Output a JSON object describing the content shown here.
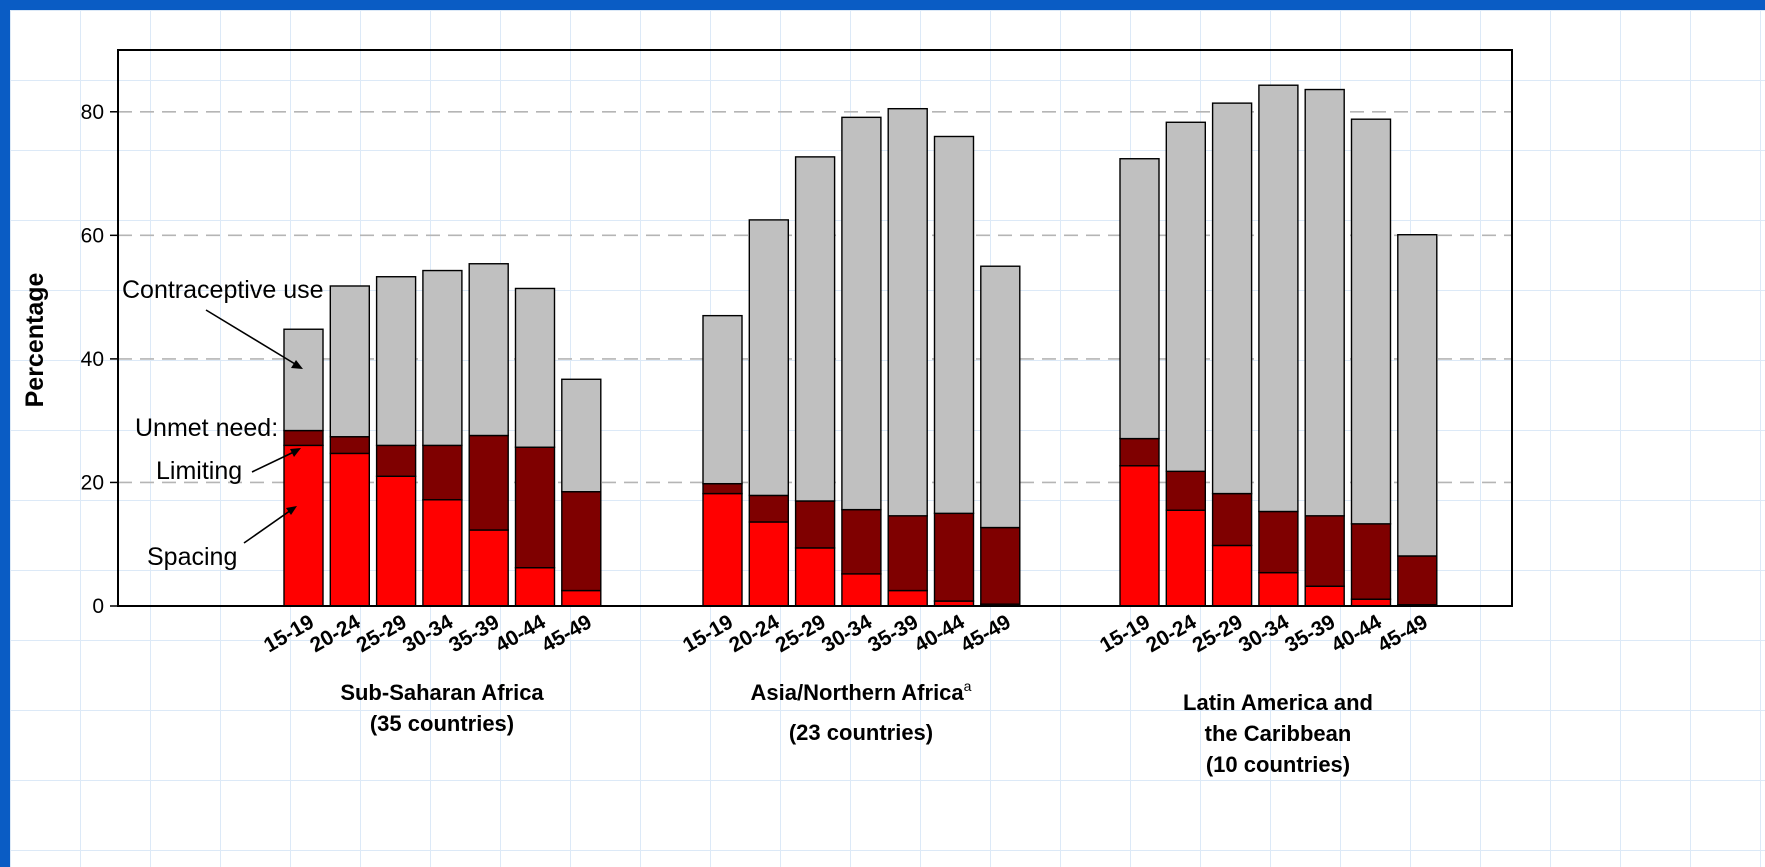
{
  "chart_data": {
    "type": "bar",
    "stacked": true,
    "ylabel": "Percentage",
    "ylim": [
      0,
      90
    ],
    "yticks": [
      "0",
      "20",
      "40",
      "60",
      "80"
    ],
    "grid": "horizontal-dashed",
    "age_groups": [
      "15-19",
      "20-24",
      "25-29",
      "30-34",
      "35-39",
      "40-44",
      "45-49"
    ],
    "series_colors": {
      "spacing": "#ff0000",
      "limiting": "#7f0000",
      "contraceptive_use": "#c0c0c0"
    },
    "annotations": {
      "contraceptive_use": "Contraceptive use",
      "unmet_need": "Unmet need:",
      "limiting": "Limiting",
      "spacing": "Spacing"
    },
    "groups": [
      {
        "label_lines": [
          "Sub-Saharan Africa",
          "(35 countries)"
        ],
        "superscript": "",
        "spacing": [
          26,
          24.7,
          21,
          17.2,
          12.3,
          6.2,
          2.5
        ],
        "limiting": [
          2.4,
          2.7,
          5,
          8.8,
          15.3,
          19.5,
          16
        ],
        "contraceptive_use": [
          16.4,
          24.4,
          27.3,
          28.3,
          27.8,
          25.7,
          18.2
        ]
      },
      {
        "label_lines": [
          "Asia/Northern Africa",
          "(23 countries)"
        ],
        "superscript": "a",
        "spacing": [
          18.2,
          13.6,
          9.4,
          5.2,
          2.5,
          0.8,
          0.3
        ],
        "limiting": [
          1.6,
          4.3,
          7.6,
          10.4,
          12.1,
          14.2,
          12.4
        ],
        "contraceptive_use": [
          27.2,
          44.6,
          55.7,
          63.5,
          65.9,
          61,
          42.3
        ]
      },
      {
        "label_lines": [
          "Latin America and",
          "the Caribbean",
          "(10 countries)"
        ],
        "superscript": "",
        "spacing": [
          22.7,
          15.5,
          9.8,
          5.4,
          3.2,
          1.1,
          0.2
        ],
        "limiting": [
          4.4,
          6.3,
          8.4,
          9.9,
          11.4,
          12.2,
          7.9
        ],
        "contraceptive_use": [
          45.3,
          56.5,
          63.2,
          69,
          69,
          65.5,
          52
        ]
      }
    ]
  }
}
